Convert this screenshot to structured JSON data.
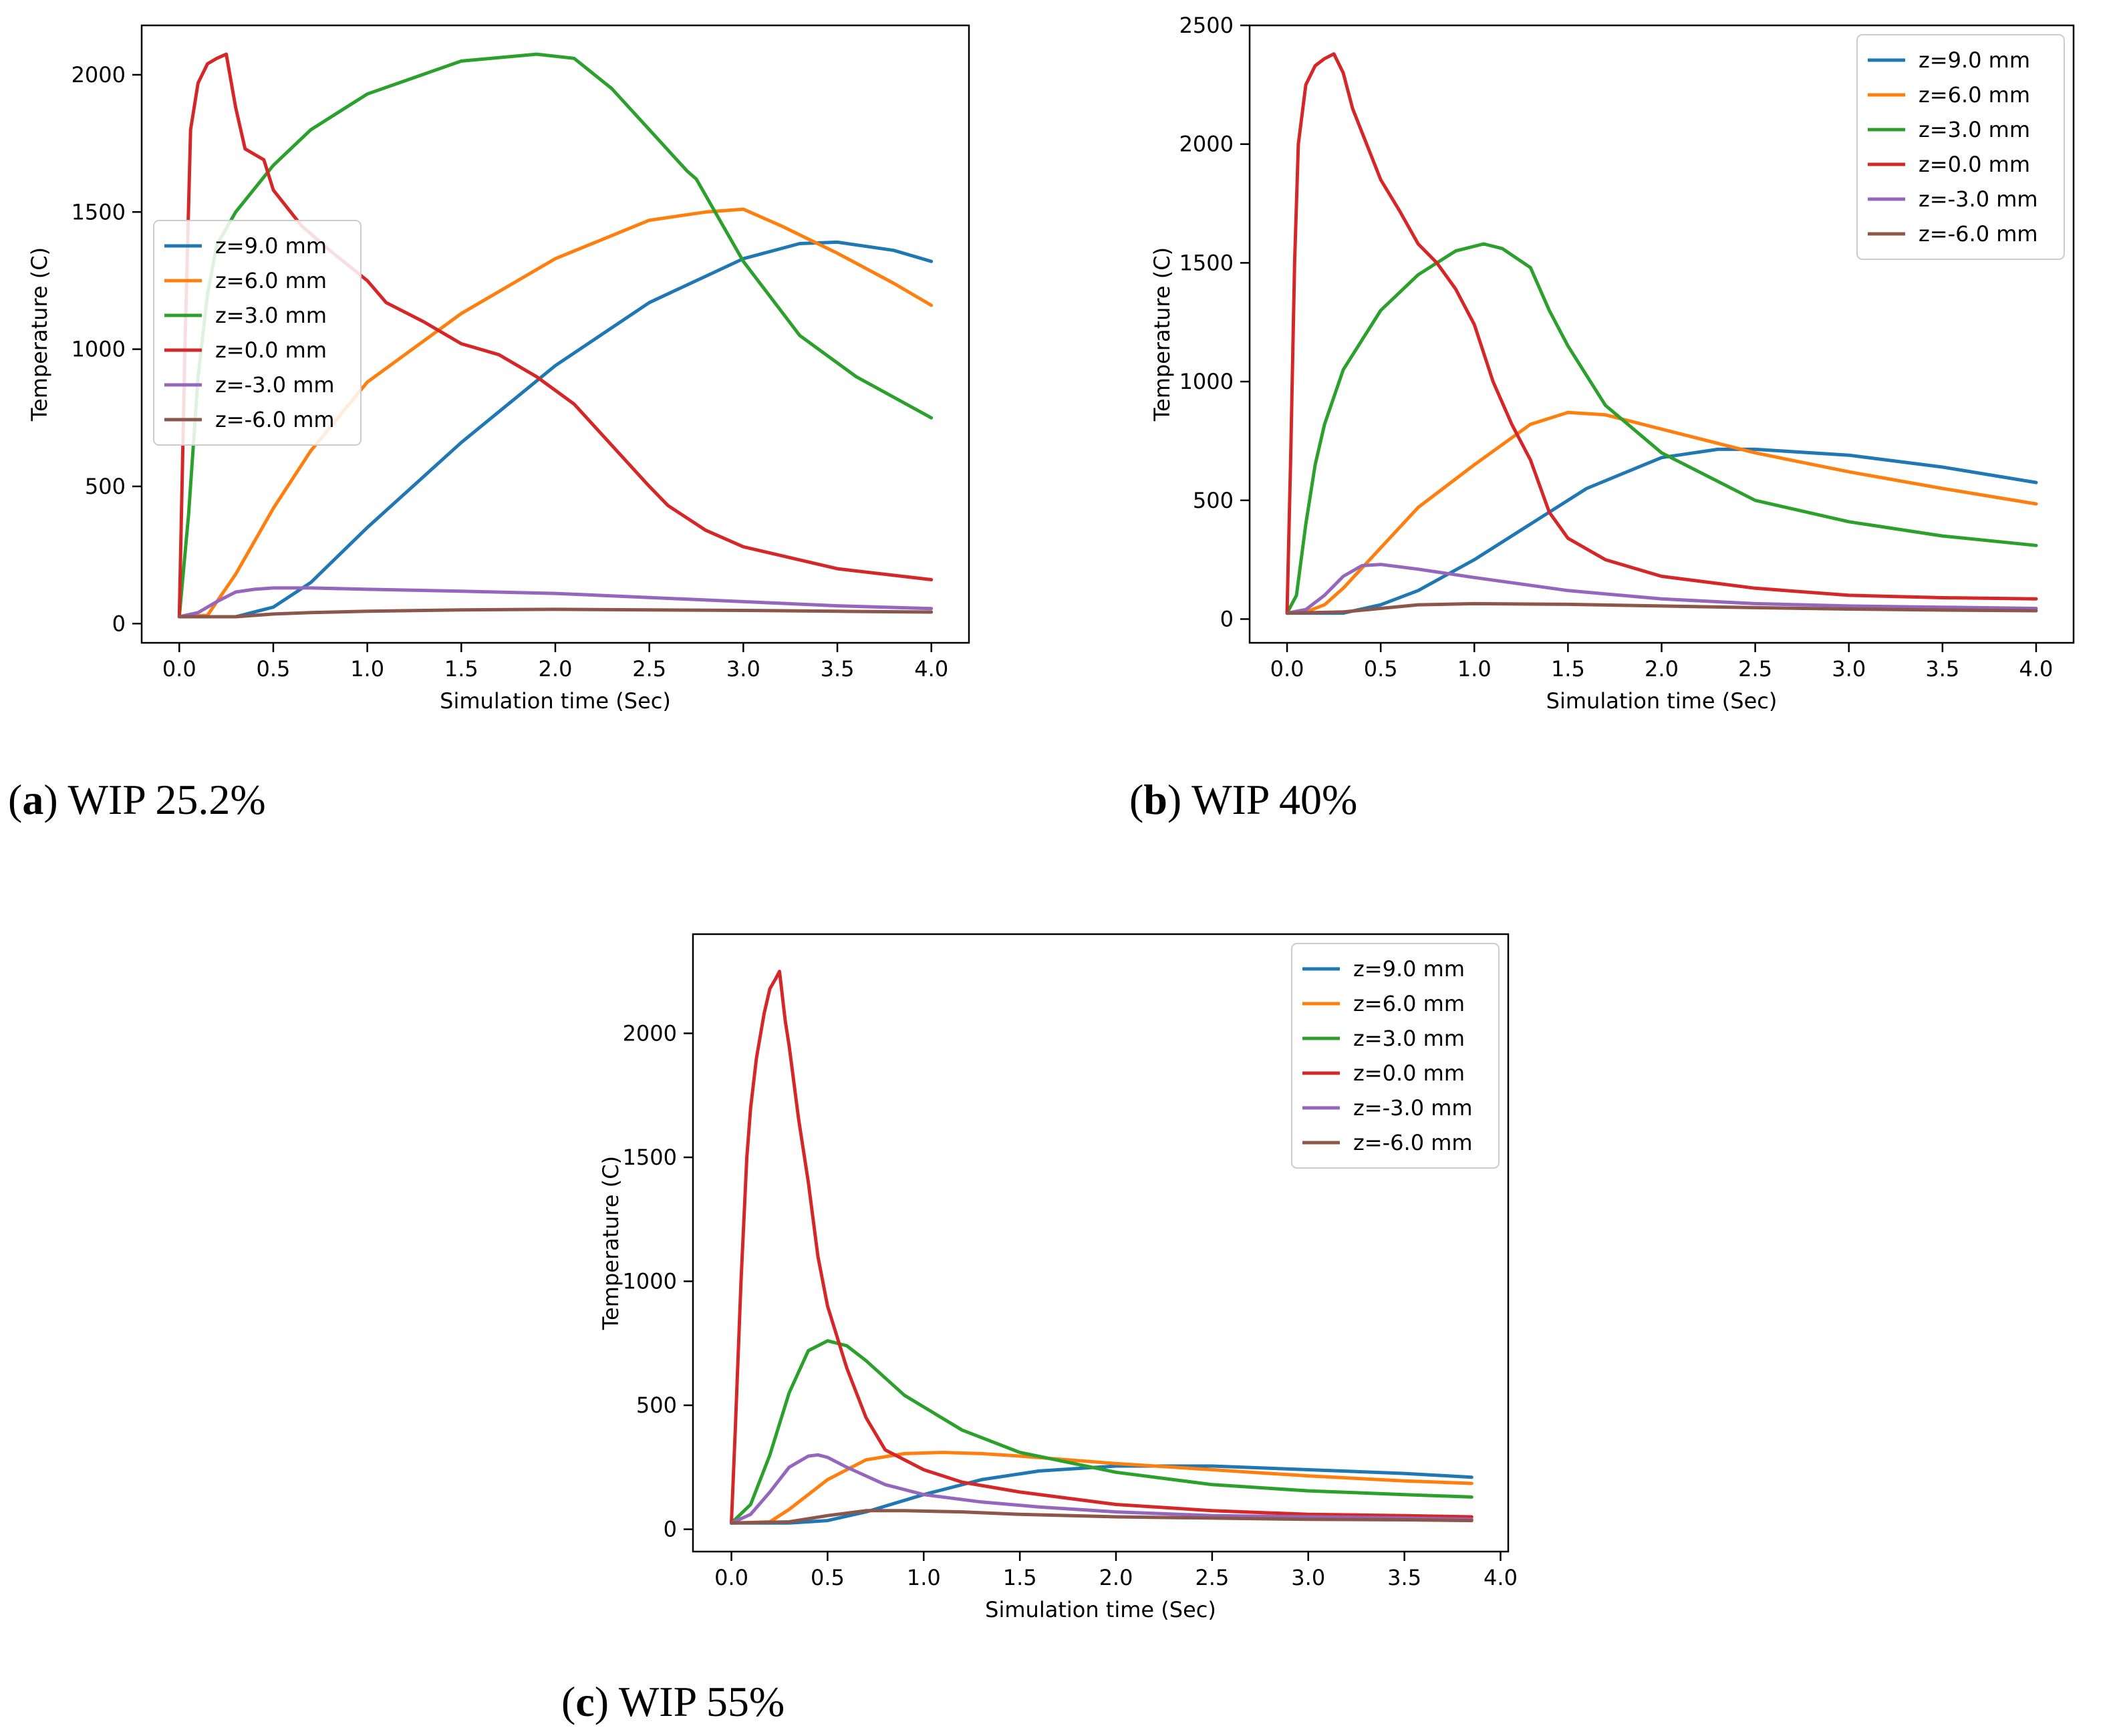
{
  "figure": {
    "captions": [
      {
        "open": "(",
        "letter": "a",
        "close": ")",
        "text": "WIP 25.2%"
      },
      {
        "open": "(",
        "letter": "b",
        "close": ")",
        "text": "WIP 40%"
      },
      {
        "open": "(",
        "letter": "c",
        "close": ")",
        "text": "WIP 55%"
      }
    ]
  },
  "chart_data": [
    {
      "type": "line",
      "title": "",
      "xlabel": "Simulation time (Sec)",
      "ylabel": "Temperature (C)",
      "xlim": [
        -0.2,
        4.2
      ],
      "ylim": [
        -70,
        2180
      ],
      "xticks": [
        0.0,
        0.5,
        1.0,
        1.5,
        2.0,
        2.5,
        3.0,
        3.5,
        4.0
      ],
      "yticks": [
        0,
        500,
        1000,
        1500,
        2000
      ],
      "legend_position": "center-left",
      "series": [
        {
          "name": "z=9.0 mm",
          "color": "#1f77b4",
          "x": [
            0,
            0.3,
            0.5,
            0.7,
            1.0,
            1.5,
            2.0,
            2.5,
            3.0,
            3.3,
            3.5,
            3.8,
            4.0
          ],
          "y": [
            25,
            25,
            60,
            150,
            350,
            660,
            940,
            1170,
            1330,
            1385,
            1390,
            1360,
            1320
          ]
        },
        {
          "name": "z=6.0 mm",
          "color": "#ff7f0e",
          "x": [
            0,
            0.15,
            0.3,
            0.5,
            0.7,
            1.0,
            1.5,
            2.0,
            2.5,
            2.8,
            3.0,
            3.2,
            3.5,
            3.8,
            4.0
          ],
          "y": [
            25,
            30,
            180,
            420,
            630,
            880,
            1130,
            1330,
            1470,
            1500,
            1510,
            1450,
            1350,
            1240,
            1160
          ]
        },
        {
          "name": "z=3.0 mm",
          "color": "#2ca02c",
          "x": [
            0,
            0.05,
            0.1,
            0.15,
            0.2,
            0.3,
            0.5,
            0.7,
            1.0,
            1.5,
            1.9,
            2.1,
            2.3,
            2.5,
            2.7,
            2.75,
            3.0,
            3.3,
            3.6,
            4.0
          ],
          "y": [
            25,
            400,
            900,
            1200,
            1380,
            1500,
            1670,
            1800,
            1930,
            2050,
            2075,
            2060,
            1950,
            1800,
            1650,
            1620,
            1320,
            1050,
            900,
            750
          ]
        },
        {
          "name": "z=0.0 mm",
          "color": "#d62728",
          "x": [
            0,
            0.03,
            0.06,
            0.1,
            0.15,
            0.2,
            0.25,
            0.3,
            0.35,
            0.45,
            0.5,
            0.65,
            0.8,
            1.0,
            1.1,
            1.3,
            1.5,
            1.7,
            1.9,
            2.1,
            2.3,
            2.5,
            2.6,
            2.8,
            3.0,
            3.5,
            4.0
          ],
          "y": [
            25,
            1000,
            1800,
            1970,
            2040,
            2060,
            2075,
            1880,
            1730,
            1690,
            1580,
            1450,
            1360,
            1250,
            1170,
            1100,
            1020,
            980,
            900,
            800,
            650,
            500,
            430,
            340,
            280,
            200,
            160
          ]
        },
        {
          "name": "z=-3.0 mm",
          "color": "#9467bd",
          "x": [
            0,
            0.1,
            0.2,
            0.3,
            0.4,
            0.5,
            0.7,
            1.0,
            1.5,
            2.0,
            2.5,
            3.0,
            3.5,
            4.0
          ],
          "y": [
            25,
            40,
            80,
            115,
            125,
            130,
            130,
            125,
            118,
            110,
            95,
            80,
            65,
            55
          ]
        },
        {
          "name": "z=-6.0 mm",
          "color": "#8c564b",
          "x": [
            0,
            0.3,
            0.5,
            0.7,
            1.0,
            1.5,
            2.0,
            2.5,
            3.0,
            3.5,
            4.0
          ],
          "y": [
            25,
            25,
            35,
            40,
            45,
            50,
            52,
            50,
            48,
            45,
            42
          ]
        }
      ]
    },
    {
      "type": "line",
      "title": "",
      "xlabel": "Simulation time (Sec)",
      "ylabel": "Temperature (C)",
      "xlim": [
        -0.2,
        4.2
      ],
      "ylim": [
        -100,
        2500
      ],
      "xticks": [
        0.0,
        0.5,
        1.0,
        1.5,
        2.0,
        2.5,
        3.0,
        3.5,
        4.0
      ],
      "yticks": [
        0,
        500,
        1000,
        1500,
        2000,
        2500
      ],
      "legend_position": "upper-right",
      "series": [
        {
          "name": "z=9.0 mm",
          "color": "#1f77b4",
          "x": [
            0,
            0.3,
            0.5,
            0.7,
            1.0,
            1.3,
            1.6,
            2.0,
            2.3,
            2.5,
            3.0,
            3.5,
            4.0
          ],
          "y": [
            25,
            25,
            60,
            120,
            250,
            400,
            550,
            680,
            715,
            715,
            690,
            640,
            575
          ]
        },
        {
          "name": "z=6.0 mm",
          "color": "#ff7f0e",
          "x": [
            0,
            0.1,
            0.2,
            0.3,
            0.5,
            0.7,
            1.0,
            1.3,
            1.5,
            1.7,
            2.0,
            2.5,
            3.0,
            3.5,
            4.0
          ],
          "y": [
            25,
            30,
            60,
            130,
            300,
            470,
            650,
            820,
            870,
            860,
            800,
            700,
            620,
            550,
            485
          ]
        },
        {
          "name": "z=3.0 mm",
          "color": "#2ca02c",
          "x": [
            0,
            0.05,
            0.1,
            0.15,
            0.2,
            0.3,
            0.5,
            0.7,
            0.9,
            1.05,
            1.15,
            1.3,
            1.4,
            1.5,
            1.7,
            2.0,
            2.5,
            3.0,
            3.5,
            4.0
          ],
          "y": [
            25,
            100,
            400,
            650,
            820,
            1050,
            1300,
            1450,
            1550,
            1580,
            1560,
            1480,
            1300,
            1150,
            900,
            700,
            500,
            410,
            350,
            310
          ]
        },
        {
          "name": "z=0.0 mm",
          "color": "#d62728",
          "x": [
            0,
            0.02,
            0.04,
            0.06,
            0.1,
            0.15,
            0.2,
            0.25,
            0.3,
            0.35,
            0.4,
            0.5,
            0.6,
            0.7,
            0.8,
            0.9,
            1.0,
            1.1,
            1.2,
            1.3,
            1.4,
            1.5,
            1.7,
            2.0,
            2.5,
            3.0,
            3.5,
            4.0
          ],
          "y": [
            25,
            700,
            1500,
            2000,
            2250,
            2330,
            2360,
            2380,
            2300,
            2150,
            2050,
            1850,
            1720,
            1580,
            1500,
            1390,
            1240,
            1000,
            820,
            670,
            450,
            340,
            250,
            180,
            130,
            100,
            90,
            85
          ]
        },
        {
          "name": "z=-3.0 mm",
          "color": "#9467bd",
          "x": [
            0,
            0.1,
            0.2,
            0.3,
            0.4,
            0.5,
            0.7,
            1.0,
            1.5,
            2.0,
            2.5,
            3.0,
            3.5,
            4.0
          ],
          "y": [
            25,
            40,
            100,
            180,
            225,
            230,
            210,
            175,
            120,
            85,
            65,
            55,
            50,
            45
          ]
        },
        {
          "name": "z=-6.0 mm",
          "color": "#8c564b",
          "x": [
            0,
            0.3,
            0.5,
            0.7,
            1.0,
            1.5,
            2.0,
            2.5,
            3.0,
            3.5,
            4.0
          ],
          "y": [
            25,
            30,
            45,
            60,
            65,
            62,
            55,
            48,
            42,
            38,
            35
          ]
        }
      ]
    },
    {
      "type": "line",
      "title": "",
      "xlabel": "Simulation time (Sec)",
      "ylabel": "Temperature (C)",
      "xlim": [
        -0.2,
        4.04
      ],
      "ylim": [
        -90,
        2400
      ],
      "xticks": [
        0.0,
        0.5,
        1.0,
        1.5,
        2.0,
        2.5,
        3.0,
        3.5,
        4.0
      ],
      "yticks": [
        0,
        500,
        1000,
        1500,
        2000
      ],
      "legend_position": "upper-right",
      "series": [
        {
          "name": "z=9.0 mm",
          "color": "#1f77b4",
          "x": [
            0,
            0.3,
            0.5,
            0.7,
            1.0,
            1.3,
            1.6,
            2.0,
            2.5,
            3.0,
            3.5,
            3.85
          ],
          "y": [
            25,
            25,
            35,
            70,
            140,
            200,
            235,
            255,
            255,
            240,
            225,
            210
          ]
        },
        {
          "name": "z=6.0 mm",
          "color": "#ff7f0e",
          "x": [
            0,
            0.2,
            0.3,
            0.5,
            0.7,
            0.9,
            1.1,
            1.3,
            1.5,
            2.0,
            2.5,
            3.0,
            3.5,
            3.85
          ],
          "y": [
            25,
            30,
            80,
            200,
            280,
            305,
            310,
            305,
            295,
            265,
            240,
            215,
            195,
            185
          ]
        },
        {
          "name": "z=3.0 mm",
          "color": "#2ca02c",
          "x": [
            0,
            0.1,
            0.2,
            0.3,
            0.4,
            0.5,
            0.6,
            0.7,
            0.9,
            1.2,
            1.5,
            2.0,
            2.5,
            3.0,
            3.5,
            3.85
          ],
          "y": [
            25,
            100,
            300,
            550,
            720,
            760,
            740,
            680,
            540,
            400,
            310,
            230,
            180,
            155,
            140,
            130
          ]
        },
        {
          "name": "z=0.0 mm",
          "color": "#d62728",
          "x": [
            0,
            0.02,
            0.05,
            0.08,
            0.1,
            0.13,
            0.17,
            0.2,
            0.23,
            0.25,
            0.28,
            0.3,
            0.35,
            0.4,
            0.45,
            0.5,
            0.6,
            0.7,
            0.8,
            1.0,
            1.2,
            1.5,
            2.0,
            2.5,
            3.0,
            3.5,
            3.85
          ],
          "y": [
            25,
            400,
            1000,
            1500,
            1700,
            1900,
            2080,
            2180,
            2220,
            2250,
            2050,
            1950,
            1650,
            1400,
            1100,
            900,
            650,
            450,
            320,
            240,
            190,
            150,
            100,
            75,
            60,
            55,
            50
          ]
        },
        {
          "name": "z=-3.0 mm",
          "color": "#9467bd",
          "x": [
            0,
            0.1,
            0.2,
            0.3,
            0.4,
            0.45,
            0.5,
            0.6,
            0.8,
            1.0,
            1.3,
            1.6,
            2.0,
            2.5,
            3.0,
            3.5,
            3.85
          ],
          "y": [
            25,
            60,
            150,
            250,
            295,
            300,
            290,
            250,
            180,
            140,
            110,
            90,
            70,
            55,
            50,
            45,
            40
          ]
        },
        {
          "name": "z=-6.0 mm",
          "color": "#8c564b",
          "x": [
            0,
            0.3,
            0.5,
            0.7,
            0.9,
            1.2,
            1.5,
            2.0,
            2.5,
            3.0,
            3.5,
            3.85
          ],
          "y": [
            25,
            30,
            55,
            75,
            75,
            70,
            60,
            50,
            45,
            40,
            38,
            35
          ]
        }
      ]
    }
  ]
}
